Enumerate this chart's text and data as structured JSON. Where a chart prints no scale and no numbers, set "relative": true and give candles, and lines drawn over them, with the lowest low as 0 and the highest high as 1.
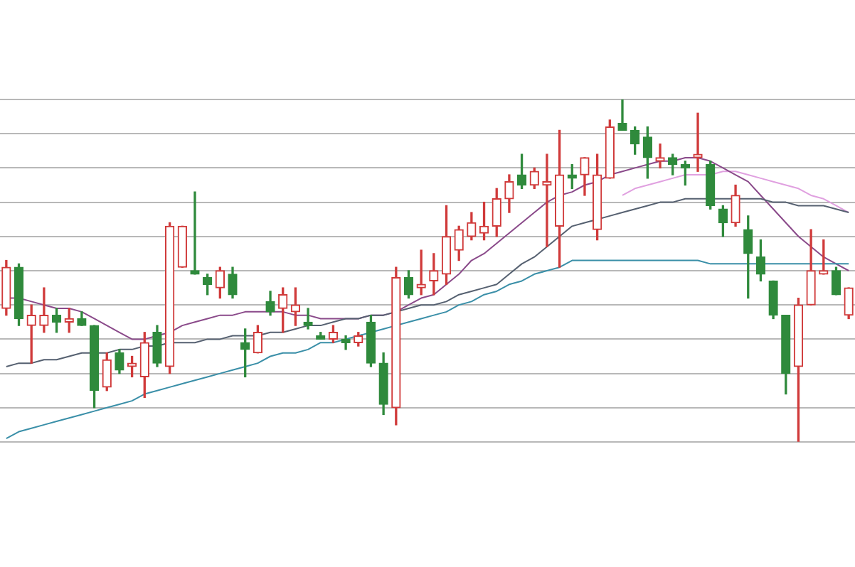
{
  "chart_data": {
    "type": "candlestick",
    "relative": true,
    "grid": "y",
    "categories": [
      null,
      null,
      null,
      null,
      null,
      null,
      null,
      null,
      null,
      null,
      null,
      null,
      null,
      null,
      null,
      null,
      null,
      null,
      null,
      null,
      null,
      null,
      null,
      null,
      null,
      null,
      null,
      null,
      null,
      null,
      null,
      null,
      null,
      null,
      null,
      null,
      null,
      null,
      null,
      null,
      null,
      null,
      null,
      null,
      null,
      null,
      null,
      null,
      null,
      null,
      null,
      null,
      null,
      null,
      null,
      null,
      null,
      null,
      null,
      null,
      null,
      null,
      null,
      null,
      null,
      null,
      null,
      null
    ],
    "ohlc": [
      [
        0.39,
        0.53,
        0.37,
        0.51
      ],
      [
        0.51,
        0.52,
        0.34,
        0.36
      ],
      [
        0.34,
        0.4,
        0.23,
        0.37
      ],
      [
        0.34,
        0.45,
        0.32,
        0.37
      ],
      [
        0.37,
        0.39,
        0.32,
        0.35
      ],
      [
        0.35,
        0.39,
        0.32,
        0.36
      ],
      [
        0.36,
        0.38,
        0.34,
        0.34
      ],
      [
        0.34,
        0.34,
        0.1,
        0.15
      ],
      [
        0.16,
        0.26,
        0.15,
        0.24
      ],
      [
        0.26,
        0.27,
        0.2,
        0.21
      ],
      [
        0.22,
        0.25,
        0.19,
        0.23
      ],
      [
        0.19,
        0.32,
        0.13,
        0.29
      ],
      [
        0.32,
        0.34,
        0.22,
        0.23
      ],
      [
        0.22,
        0.64,
        0.2,
        0.63
      ],
      [
        0.51,
        0.63,
        0.51,
        0.63
      ],
      [
        0.5,
        0.73,
        0.49,
        0.49
      ],
      [
        0.48,
        0.49,
        0.43,
        0.46
      ],
      [
        0.45,
        0.51,
        0.42,
        0.5
      ],
      [
        0.49,
        0.51,
        0.42,
        0.43
      ],
      [
        0.29,
        0.33,
        0.19,
        0.27
      ],
      [
        0.26,
        0.34,
        0.26,
        0.32
      ],
      [
        0.41,
        0.44,
        0.37,
        0.38
      ],
      [
        0.39,
        0.45,
        0.32,
        0.43
      ],
      [
        0.38,
        0.45,
        0.34,
        0.4
      ],
      [
        0.35,
        0.39,
        0.33,
        0.34
      ],
      [
        0.31,
        0.32,
        0.3,
        0.3
      ],
      [
        0.3,
        0.34,
        0.29,
        0.32
      ],
      [
        0.3,
        0.31,
        0.27,
        0.29
      ],
      [
        0.29,
        0.32,
        0.28,
        0.31
      ],
      [
        0.35,
        0.37,
        0.22,
        0.23
      ],
      [
        0.23,
        0.26,
        0.08,
        0.11
      ],
      [
        0.1,
        0.51,
        0.05,
        0.48
      ],
      [
        0.48,
        0.5,
        0.42,
        0.43
      ],
      [
        0.45,
        0.56,
        0.43,
        0.46
      ],
      [
        0.47,
        0.55,
        0.43,
        0.5
      ],
      [
        0.49,
        0.69,
        0.46,
        0.6
      ],
      [
        0.56,
        0.63,
        0.53,
        0.62
      ],
      [
        0.6,
        0.67,
        0.59,
        0.64
      ],
      [
        0.61,
        0.7,
        0.59,
        0.63
      ],
      [
        0.63,
        0.74,
        0.6,
        0.71
      ],
      [
        0.71,
        0.78,
        0.67,
        0.76
      ],
      [
        0.78,
        0.84,
        0.74,
        0.75
      ],
      [
        0.75,
        0.8,
        0.74,
        0.79
      ],
      [
        0.75,
        0.84,
        0.57,
        0.76
      ],
      [
        0.63,
        0.91,
        0.51,
        0.78
      ],
      [
        0.78,
        0.81,
        0.74,
        0.77
      ],
      [
        0.78,
        0.83,
        0.72,
        0.83
      ],
      [
        0.62,
        0.84,
        0.59,
        0.78
      ],
      [
        0.77,
        0.94,
        0.77,
        0.92
      ],
      [
        0.93,
        1.0,
        0.91,
        0.91
      ],
      [
        0.91,
        0.92,
        0.84,
        0.87
      ],
      [
        0.89,
        0.92,
        0.77,
        0.83
      ],
      [
        0.82,
        0.87,
        0.8,
        0.83
      ],
      [
        0.83,
        0.84,
        0.78,
        0.81
      ],
      [
        0.81,
        0.82,
        0.75,
        0.8
      ],
      [
        0.83,
        0.96,
        0.79,
        0.84
      ],
      [
        0.81,
        0.82,
        0.68,
        0.69
      ],
      [
        0.68,
        0.69,
        0.6,
        0.64
      ],
      [
        0.64,
        0.75,
        0.63,
        0.72
      ],
      [
        0.62,
        0.66,
        0.42,
        0.55
      ],
      [
        0.54,
        0.59,
        0.47,
        0.49
      ],
      [
        0.47,
        0.47,
        0.36,
        0.37
      ],
      [
        0.37,
        0.37,
        0.14,
        0.2
      ],
      [
        0.22,
        0.42,
        0.0,
        0.4
      ],
      [
        0.4,
        0.62,
        0.4,
        0.5
      ],
      [
        0.49,
        0.59,
        0.49,
        0.5
      ],
      [
        0.5,
        0.51,
        0.43,
        0.43
      ],
      [
        0.37,
        0.45,
        0.36,
        0.45
      ]
    ],
    "colors": [
      "#d03a3a",
      "#2f8a3c",
      "#d03a3a",
      "#d03a3a",
      "#2f8a3c",
      "#d03a3a",
      "#2f8a3c",
      "#2f8a3c",
      "#d03a3a",
      "#2f8a3c",
      "#d03a3a",
      "#d03a3a",
      "#2f8a3c",
      "#d03a3a",
      "#d03a3a",
      "#2f8a3c",
      "#2f8a3c",
      "#d03a3a",
      "#2f8a3c",
      "#2f8a3c",
      "#d03a3a",
      "#2f8a3c",
      "#d03a3a",
      "#d03a3a",
      "#2f8a3c",
      "#2f8a3c",
      "#d03a3a",
      "#2f8a3c",
      "#d03a3a",
      "#2f8a3c",
      "#2f8a3c",
      "#d03a3a",
      "#2f8a3c",
      "#d03a3a",
      "#d03a3a",
      "#d03a3a",
      "#d03a3a",
      "#d03a3a",
      "#d03a3a",
      "#d03a3a",
      "#d03a3a",
      "#2f8a3c",
      "#d03a3a",
      "#d03a3a",
      "#d03a3a",
      "#2f8a3c",
      "#d03a3a",
      "#d03a3a",
      "#d03a3a",
      "#2f8a3c",
      "#2f8a3c",
      "#2f8a3c",
      "#d03a3a",
      "#2f8a3c",
      "#2f8a3c",
      "#d03a3a",
      "#2f8a3c",
      "#2f8a3c",
      "#d03a3a",
      "#2f8a3c",
      "#2f8a3c",
      "#2f8a3c",
      "#2f8a3c",
      "#d03a3a",
      "#d03a3a",
      "#d03a3a",
      "#2f8a3c",
      "#d03a3a"
    ],
    "series": [
      {
        "type": "line",
        "color": "#3a8fa8",
        "values": [
          0.01,
          0.03,
          0.04,
          0.05,
          0.06,
          0.07,
          0.08,
          0.09,
          0.1,
          0.11,
          0.12,
          0.14,
          0.15,
          0.16,
          0.17,
          0.18,
          0.19,
          0.2,
          0.21,
          0.22,
          0.23,
          0.25,
          0.26,
          0.26,
          0.27,
          0.29,
          0.29,
          0.3,
          0.31,
          0.32,
          0.33,
          0.34,
          0.35,
          0.36,
          0.37,
          0.38,
          0.4,
          0.41,
          0.43,
          0.44,
          0.46,
          0.47,
          0.49,
          0.5,
          0.51,
          0.53,
          0.53,
          0.53,
          0.53,
          0.53,
          0.53,
          0.53,
          0.53,
          0.53,
          0.53,
          0.53,
          0.52,
          0.52,
          0.52,
          0.52,
          0.52,
          0.52,
          0.52,
          0.52,
          0.52,
          0.52,
          0.52,
          0.52
        ]
      },
      {
        "type": "line",
        "color": "#556070",
        "values": [
          0.22,
          0.23,
          0.23,
          0.24,
          0.24,
          0.25,
          0.26,
          0.26,
          0.26,
          0.27,
          0.27,
          0.28,
          0.28,
          0.29,
          0.29,
          0.29,
          0.3,
          0.3,
          0.31,
          0.31,
          0.31,
          0.32,
          0.32,
          0.33,
          0.34,
          0.34,
          0.35,
          0.36,
          0.36,
          0.37,
          0.37,
          0.38,
          0.39,
          0.4,
          0.4,
          0.41,
          0.43,
          0.44,
          0.45,
          0.46,
          0.49,
          0.52,
          0.54,
          0.57,
          0.6,
          0.63,
          0.64,
          0.65,
          0.66,
          0.67,
          0.68,
          0.69,
          0.7,
          0.7,
          0.71,
          0.71,
          0.71,
          0.71,
          0.71,
          0.71,
          0.71,
          0.7,
          0.7,
          0.69,
          0.69,
          0.69,
          0.68,
          0.67
        ]
      },
      {
        "type": "line",
        "color": "#8a4a8a",
        "values": [
          0.42,
          0.42,
          0.41,
          0.4,
          0.39,
          0.39,
          0.38,
          0.36,
          0.34,
          0.32,
          0.3,
          0.3,
          0.31,
          0.32,
          0.34,
          0.35,
          0.36,
          0.37,
          0.37,
          0.38,
          0.38,
          0.38,
          0.38,
          0.37,
          0.37,
          0.36,
          0.36,
          0.36,
          0.36,
          0.37,
          0.37,
          0.38,
          0.4,
          0.42,
          0.43,
          0.46,
          0.49,
          0.53,
          0.55,
          0.58,
          0.61,
          0.64,
          0.67,
          0.7,
          0.72,
          0.73,
          0.75,
          0.76,
          0.78,
          0.79,
          0.8,
          0.81,
          0.82,
          0.82,
          0.83,
          0.83,
          0.82,
          0.8,
          0.78,
          0.76,
          0.72,
          0.68,
          0.64,
          0.6,
          0.57,
          0.54,
          0.52,
          0.5
        ]
      },
      {
        "type": "line",
        "color": "#e0a0e0",
        "values": [
          null,
          null,
          null,
          null,
          null,
          null,
          null,
          null,
          null,
          null,
          null,
          null,
          null,
          null,
          null,
          null,
          null,
          null,
          null,
          null,
          null,
          null,
          null,
          null,
          null,
          null,
          null,
          null,
          null,
          null,
          null,
          null,
          null,
          null,
          null,
          null,
          null,
          null,
          null,
          null,
          null,
          null,
          null,
          null,
          null,
          null,
          null,
          null,
          null,
          0.72,
          0.74,
          0.75,
          0.76,
          0.77,
          0.78,
          0.78,
          0.78,
          0.79,
          0.79,
          0.78,
          0.77,
          0.76,
          0.75,
          0.74,
          0.72,
          0.71,
          0.69,
          0.67
        ]
      }
    ]
  }
}
